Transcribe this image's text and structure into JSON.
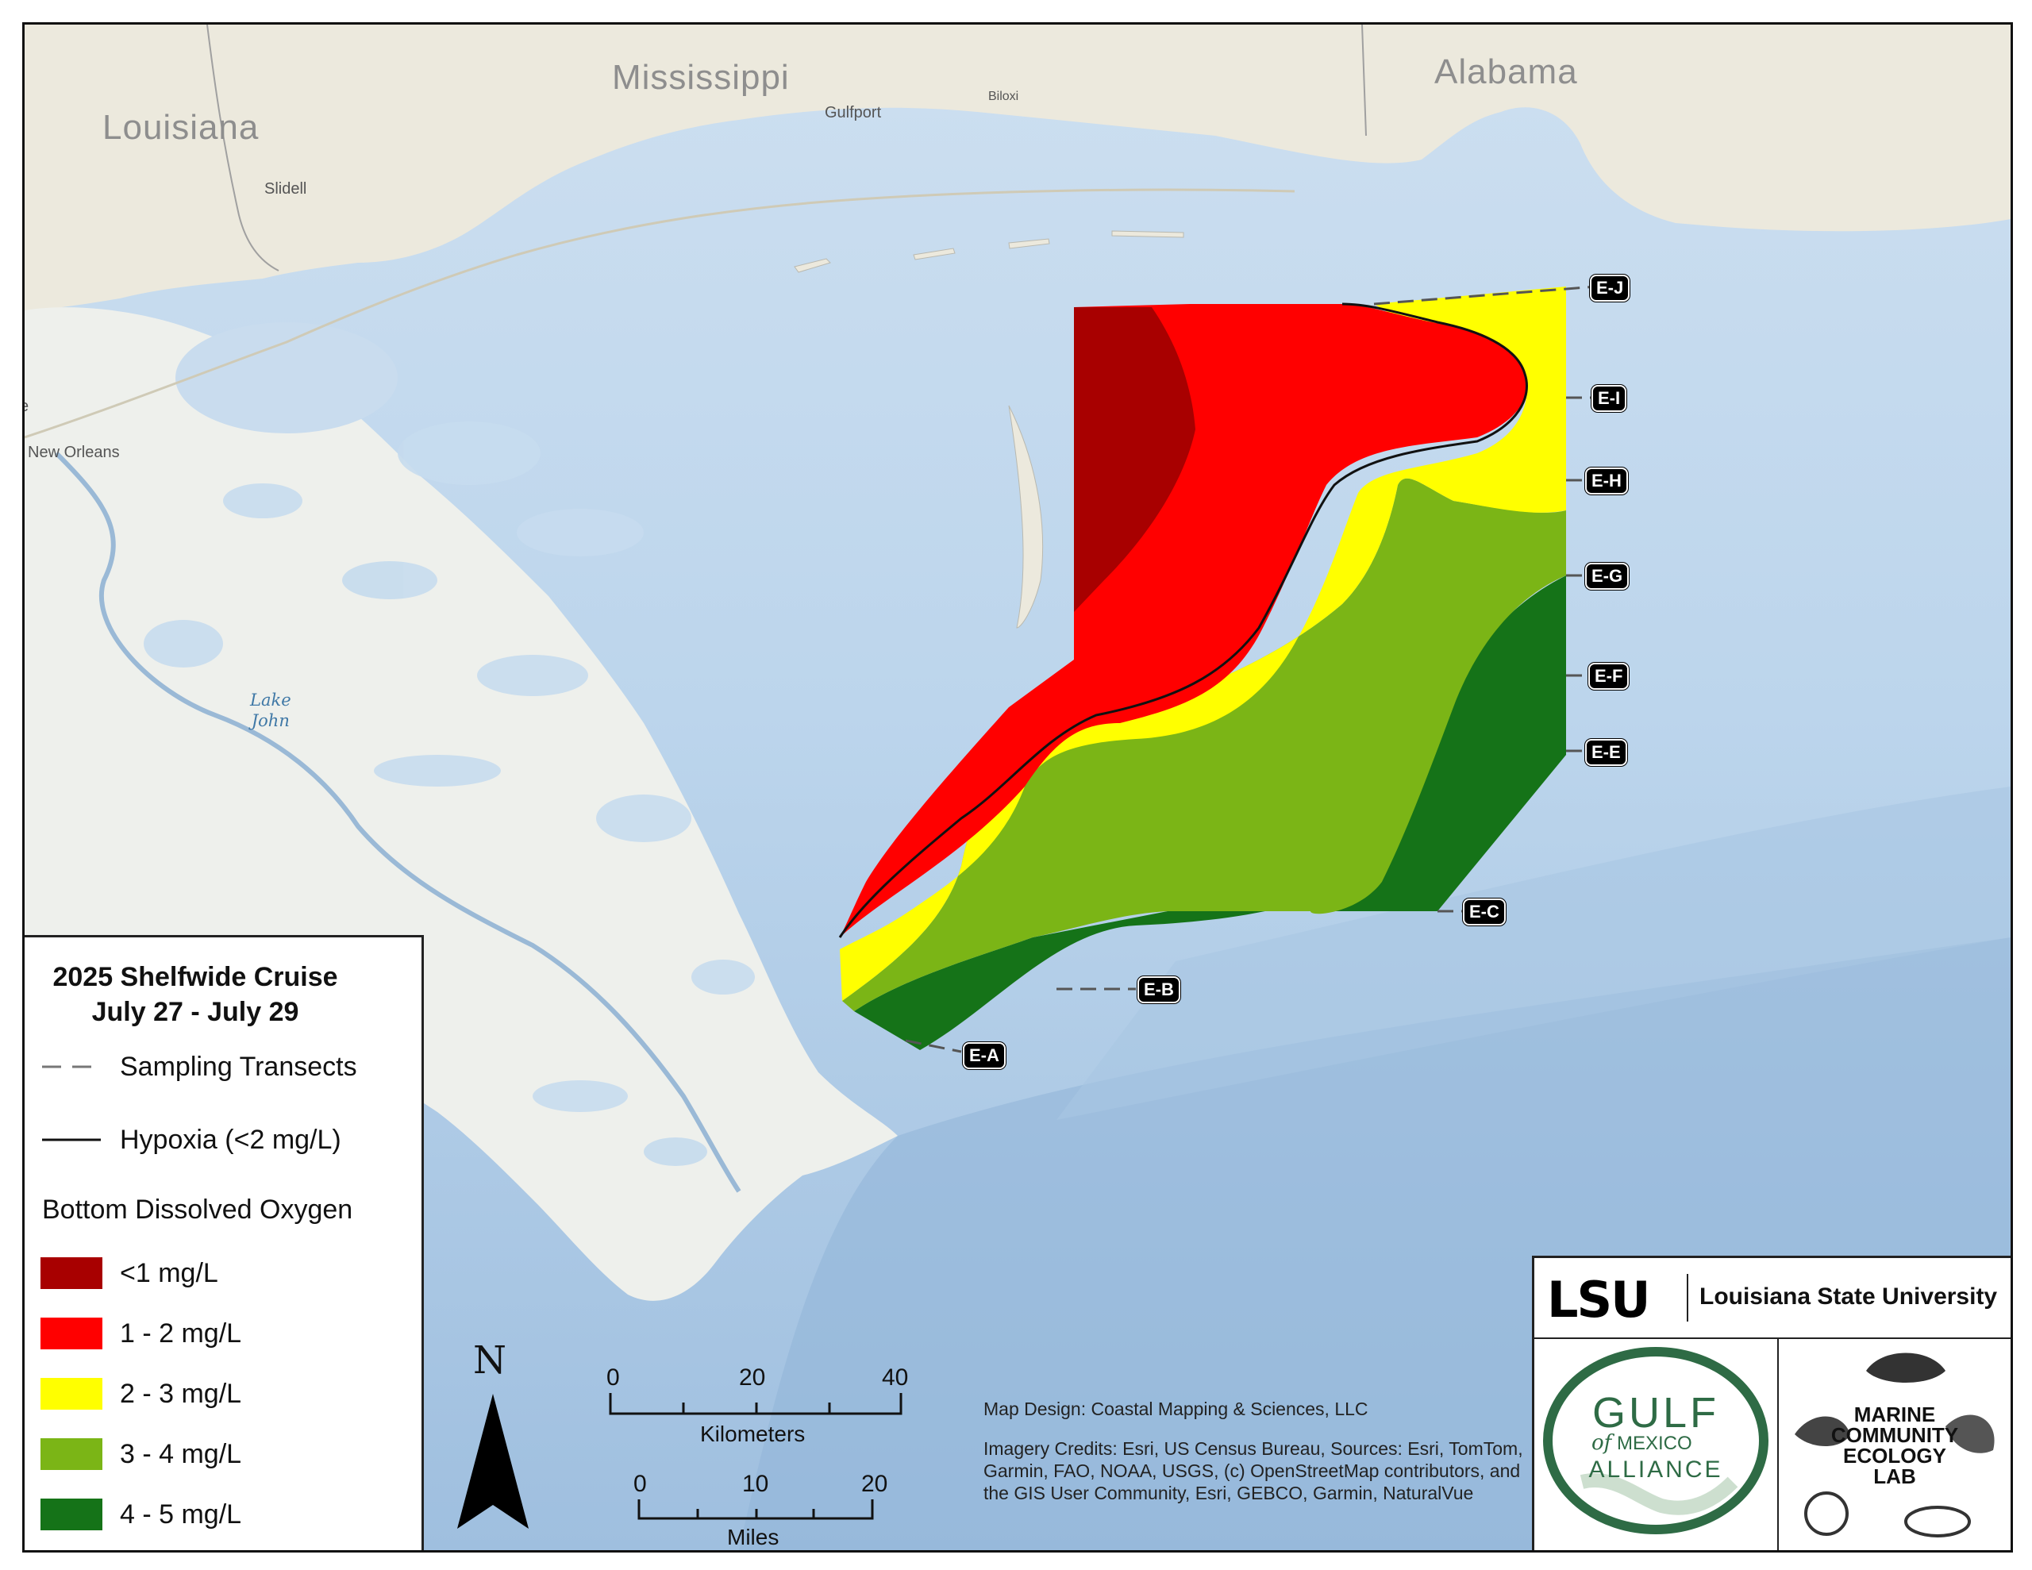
{
  "map": {
    "states": [
      "Louisiana",
      "Mississippi",
      "Alabama"
    ],
    "cities": [
      "New Orleans",
      "Slidell",
      "Gulfport",
      "Biloxi"
    ],
    "water": [
      "Lake",
      "John"
    ],
    "edge_letter": "e",
    "transects": [
      "E-A",
      "E-B",
      "E-C",
      "E-E",
      "E-F",
      "E-G",
      "E-H",
      "E-I",
      "E-J"
    ]
  },
  "legend": {
    "title_line1": "2025 Shelfwide Cruise",
    "title_line2": "July 27 - July 29",
    "transects_label": "Sampling Transects",
    "hypoxia_label": "Hypoxia (<2 mg/L)",
    "do_heading": "Bottom Dissolved Oxygen",
    "classes": [
      {
        "label": "<1 mg/L",
        "color": "#a80000"
      },
      {
        "label": "1 - 2 mg/L",
        "color": "#ff0000"
      },
      {
        "label": "2 - 3 mg/L",
        "color": "#ffff00"
      },
      {
        "label": "3 - 4 mg/L",
        "color": "#7bb516"
      },
      {
        "label": "4 - 5 mg/L",
        "color": "#157318"
      }
    ]
  },
  "north_arrow": {
    "letter": "N"
  },
  "scale": {
    "km_ticks": [
      "0",
      "20",
      "40"
    ],
    "km_label": "Kilometers",
    "mi_ticks": [
      "0",
      "10",
      "20"
    ],
    "mi_label": "Miles"
  },
  "credits": {
    "design": "Map Design: Coastal Mapping & Sciences, LLC",
    "imagery": "Imagery Credits: Esri, US Census Bureau, Sources: Esri, TomTom, Garmin, FAO, NOAA, USGS, (c) OpenStreetMap contributors, and the GIS User Community, Esri, GEBCO, Garmin, NaturalVue"
  },
  "logos": {
    "lsu_mark": "LSU",
    "lsu_name": "Louisiana State University",
    "gulf_line1": "GULF",
    "gulf_of": "of",
    "gulf_line2": "MEXICO",
    "gulf_line3": "ALLIANCE",
    "mcel_line1": "MARINE",
    "mcel_line2": "COMMUNITY",
    "mcel_line3": "ECOLOGY",
    "mcel_line4": "LAB"
  }
}
